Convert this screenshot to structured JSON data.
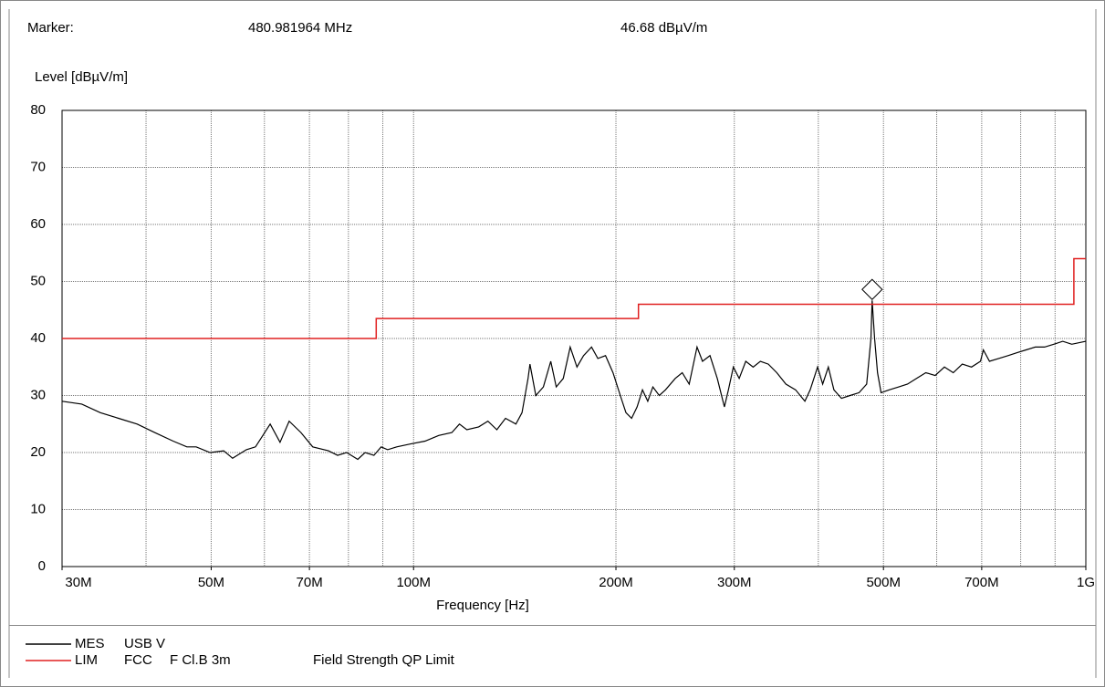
{
  "chart_data": {
    "type": "line",
    "marker": {
      "label": "Marker:",
      "x_text": "480.981964 MHz",
      "y_text": "46.68 dBµV/m",
      "x": 480981964,
      "y": 46.68
    },
    "y_label": "Level [dBµV/m]",
    "x_label": "Frequency [Hz]",
    "x_scale": "log",
    "grid": true,
    "xlim": [
      30000000,
      1000000000
    ],
    "ylim": [
      0,
      80
    ],
    "yticks": [
      0,
      10,
      20,
      30,
      40,
      50,
      60,
      70,
      80
    ],
    "xticks": [
      {
        "value": 30000000,
        "label": "30M"
      },
      {
        "value": 50000000,
        "label": "50M"
      },
      {
        "value": 70000000,
        "label": "70M"
      },
      {
        "value": 100000000,
        "label": "100M"
      },
      {
        "value": 200000000,
        "label": "200M"
      },
      {
        "value": 300000000,
        "label": "300M"
      },
      {
        "value": 500000000,
        "label": "500M"
      },
      {
        "value": 700000000,
        "label": "700M"
      },
      {
        "value": 1000000000,
        "label": "1G"
      }
    ],
    "xgrid": [
      40000000,
      50000000,
      60000000,
      70000000,
      80000000,
      90000000,
      100000000,
      200000000,
      300000000,
      400000000,
      500000000,
      600000000,
      700000000,
      800000000,
      900000000
    ],
    "series": [
      {
        "name": "MES",
        "detail": [
          "USB V"
        ],
        "color": "#000000",
        "x": [
          30000000,
          32100000,
          34200000,
          36400000,
          38800000,
          41200000,
          43900000,
          46000000,
          47500000,
          49800000,
          52200000,
          53800000,
          56400000,
          58200000,
          61200000,
          63300000,
          65300000,
          68000000,
          70800000,
          74700000,
          77100000,
          79500000,
          82600000,
          84700000,
          87300000,
          89500000,
          91500000,
          94400000,
          99000000,
          104000000,
          109000000,
          114000000,
          117000000,
          120000000,
          125000000,
          129000000,
          133000000,
          137000000,
          142000000,
          145000000,
          148000000,
          149000000,
          152000000,
          156000000,
          160000000,
          163000000,
          167000000,
          171000000,
          175000000,
          179000000,
          184000000,
          188000000,
          193000000,
          198000000,
          203000000,
          207000000,
          211000000,
          215000000,
          219000000,
          223000000,
          227000000,
          232000000,
          237000000,
          245000000,
          251000000,
          257000000,
          264000000,
          269000000,
          276000000,
          283000000,
          290000000,
          294000000,
          299000000,
          305000000,
          312000000,
          320000000,
          328000000,
          337000000,
          347000000,
          358000000,
          370000000,
          382000000,
          389000000,
          399000000,
          406000000,
          414000000,
          422000000,
          433000000,
          446000000,
          460000000,
          472000000,
          479000000,
          480981964,
          485000000,
          490000000,
          496000000,
          510000000,
          527000000,
          543000000,
          560000000,
          578000000,
          597000000,
          616000000,
          635000000,
          655000000,
          676000000,
          697000000,
          704000000,
          719000000,
          742000000,
          766000000,
          790000000,
          815000000,
          841000000,
          868000000,
          896000000,
          924000000,
          953000000,
          1000000000
        ],
        "values": [
          29,
          28.5,
          27,
          26,
          25,
          23.5,
          22,
          21,
          21,
          20,
          20.3,
          19,
          20.5,
          21,
          25,
          21.8,
          25.5,
          23.5,
          21,
          20.3,
          19.5,
          20,
          18.8,
          20,
          19.5,
          21,
          20.5,
          21,
          21.5,
          22,
          23,
          23.5,
          25,
          24,
          24.5,
          25.5,
          24,
          26,
          25,
          27,
          33,
          35.5,
          30,
          31.5,
          36,
          31.5,
          33,
          38.5,
          35,
          37,
          38.5,
          36.5,
          37,
          34,
          30,
          27,
          26,
          28,
          31,
          29,
          31.5,
          30,
          31,
          33,
          34,
          32,
          38.5,
          36,
          37,
          33,
          28,
          31,
          35,
          33,
          36,
          35,
          36,
          35.5,
          34,
          32,
          31,
          29,
          31,
          35,
          32,
          35,
          31,
          29.5,
          30,
          30.5,
          32,
          40,
          46.68,
          40,
          34,
          30.5,
          31,
          31.5,
          32,
          33,
          34,
          33.5,
          35,
          34,
          35.5,
          35,
          36,
          38,
          36,
          36.5,
          37,
          37.5,
          38,
          38.5,
          38.5,
          39,
          39.5,
          39,
          39.5
        ]
      },
      {
        "name": "LIM",
        "detail": [
          "FCC",
          "F Cl.B 3m",
          "Field Strength QP Limit"
        ],
        "color": "#e02020",
        "x": [
          30000000,
          88000000,
          88000000,
          216000000,
          216000000,
          960000000,
          960000000,
          1000000000
        ],
        "values": [
          40,
          40,
          43.5,
          43.5,
          46,
          46,
          54,
          54
        ]
      }
    ]
  }
}
